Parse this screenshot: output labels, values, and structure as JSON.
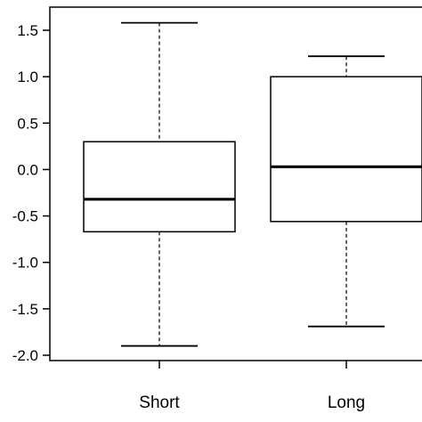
{
  "chart_data": {
    "type": "boxplot",
    "categories": [
      "Short",
      "Long"
    ],
    "boxes": [
      {
        "category": "Short",
        "whisker_low": -1.9,
        "q1": -0.67,
        "median": -0.32,
        "q3": 0.3,
        "whisker_high": 1.58
      },
      {
        "category": "Long",
        "whisker_low": -1.69,
        "q1": -0.56,
        "median": 0.03,
        "q3": 1.0,
        "whisker_high": 1.22
      }
    ],
    "yticks": [
      1.5,
      1.0,
      0.5,
      0.0,
      -0.5,
      -1.0,
      -1.5,
      -2.0
    ],
    "ytick_labels": [
      "1.5",
      "1.0",
      "0.5",
      "0.0",
      "-0.5",
      "-1.0",
      "-1.5",
      "-2.0"
    ],
    "ylim": [
      -2.03,
      1.8
    ],
    "title": "",
    "xlabel": "",
    "ylabel": "",
    "grid": false,
    "colors": {
      "box_stroke": "#000000",
      "median": "#000000",
      "whisker": "#000000"
    }
  }
}
